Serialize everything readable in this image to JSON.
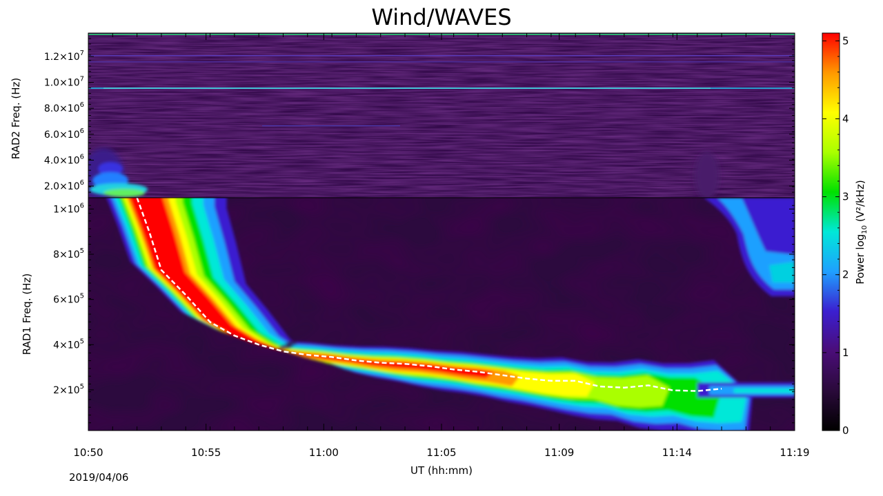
{
  "chart_data": {
    "type": "heatmap",
    "title": "Wind/WAVES",
    "date": "2019/04/06",
    "xlabel": "UT (hh:mm)",
    "x_ticks": [
      "10:50",
      "10:55",
      "11:00",
      "11:05",
      "11:09",
      "11:14",
      "11:19"
    ],
    "panels": [
      {
        "name": "RAD2",
        "ylabel": "RAD2 Freq. (Hz)",
        "ylim": [
          1100000,
          13800000
        ],
        "y_ticks": [
          {
            "value": 2000000,
            "mant": "2.0",
            "exp": "6"
          },
          {
            "value": 4000000,
            "mant": "4.0",
            "exp": "6"
          },
          {
            "value": 6000000,
            "mant": "6.0",
            "exp": "6"
          },
          {
            "value": 8000000,
            "mant": "8.0",
            "exp": "6"
          },
          {
            "value": 10000000,
            "mant": "1.0",
            "exp": "7"
          },
          {
            "value": 12000000,
            "mant": "1.2",
            "exp": "7"
          }
        ]
      },
      {
        "name": "RAD1",
        "ylabel": "RAD1 Freq. (Hz)",
        "ylim": [
          20000,
          1050000
        ],
        "y_ticks": [
          {
            "value": 200000,
            "mant": "2",
            "exp": "5"
          },
          {
            "value": 400000,
            "mant": "4",
            "exp": "5"
          },
          {
            "value": 600000,
            "mant": "6",
            "exp": "5"
          },
          {
            "value": 800000,
            "mant": "8",
            "exp": "5"
          },
          {
            "value": 1000000,
            "mant": "1",
            "exp": "6"
          }
        ]
      }
    ],
    "colorbar": {
      "label": "Power log",
      "label_sub": "10",
      "label_tail": " (V²/kHz)",
      "range": [
        0,
        5.1
      ],
      "ticks": [
        "0",
        "1",
        "2",
        "3",
        "4",
        "5"
      ],
      "colors": [
        "#000000",
        "#2a0a3a",
        "#4a0d78",
        "#3b1fd0",
        "#1fa0ff",
        "#00e8d8",
        "#00e000",
        "#aaff00",
        "#ffff00",
        "#ff9900",
        "#ff0000"
      ]
    },
    "burst_track": {
      "style": "dashed-white",
      "x_minutes": [
        2.0,
        2.5,
        3.0,
        4.0,
        5.0,
        6.0,
        7.0,
        8.0,
        9.0,
        10.0,
        11.0,
        12.0,
        13.0,
        14.0,
        15.0,
        16.0,
        17.0,
        18.0,
        19.0,
        20.0,
        21.0,
        22.0,
        23.0,
        24.0,
        25.0,
        26.0
      ],
      "y_hz": [
        1050000,
        900000,
        730000,
        620000,
        500000,
        440000,
        400000,
        370000,
        355000,
        345000,
        330000,
        320000,
        315000,
        305000,
        290000,
        280000,
        265000,
        250000,
        240000,
        240000,
        215000,
        210000,
        220000,
        198000,
        195000,
        205000
      ]
    }
  }
}
